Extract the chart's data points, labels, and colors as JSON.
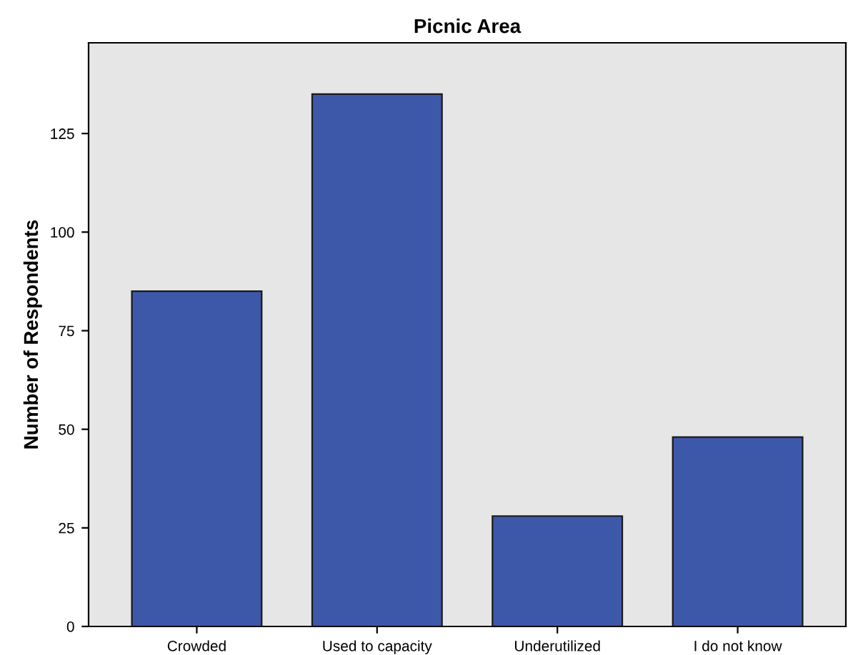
{
  "chart_data": {
    "type": "bar",
    "title": "Picnic Area",
    "ylabel": "Number of Respondents",
    "categories": [
      "Crowded",
      "Used to capacity",
      "Underutilized",
      "I do not know"
    ],
    "values": [
      85,
      135,
      28,
      48
    ],
    "color": "#3e58a9",
    "ylim": [
      0,
      148
    ],
    "yticks": [
      0,
      25,
      50,
      75,
      100,
      125
    ],
    "grid": false,
    "legend": false
  }
}
